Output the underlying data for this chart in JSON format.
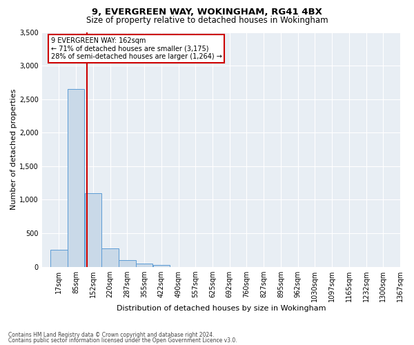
{
  "title1": "9, EVERGREEN WAY, WOKINGHAM, RG41 4BX",
  "title2": "Size of property relative to detached houses in Wokingham",
  "xlabel": "Distribution of detached houses by size in Wokingham",
  "ylabel": "Number of detached properties",
  "annotation_title": "9 EVERGREEN WAY: 162sqm",
  "annotation_line1": "← 71% of detached houses are smaller (3,175)",
  "annotation_line2": "28% of semi-detached houses are larger (1,264) →",
  "footnote1": "Contains HM Land Registry data © Crown copyright and database right 2024.",
  "footnote2": "Contains public sector information licensed under the Open Government Licence v3.0.",
  "bar_color": "#c9d9e8",
  "bar_edge_color": "#5b9bd5",
  "vline_color": "#cc0000",
  "annotation_box_color": "#cc0000",
  "plot_bg_color": "#e8eef4",
  "grid_color": "#ffffff",
  "bin_labels": [
    "17sqm",
    "85sqm",
    "152sqm",
    "220sqm",
    "287sqm",
    "355sqm",
    "422sqm",
    "490sqm",
    "557sqm",
    "625sqm",
    "692sqm",
    "760sqm",
    "827sqm",
    "895sqm",
    "962sqm",
    "1030sqm",
    "1097sqm",
    "1165sqm",
    "1232sqm",
    "1300sqm",
    "1367sqm"
  ],
  "bin_edges": [
    17,
    85,
    152,
    220,
    287,
    355,
    422,
    490,
    557,
    625,
    692,
    760,
    827,
    895,
    962,
    1030,
    1097,
    1165,
    1232,
    1300,
    1367
  ],
  "counts": [
    250,
    2650,
    1100,
    270,
    100,
    50,
    30,
    0,
    0,
    0,
    0,
    0,
    0,
    0,
    0,
    0,
    0,
    0,
    0,
    0
  ],
  "vline_x": 162,
  "ylim": [
    0,
    3500
  ],
  "yticks": [
    0,
    500,
    1000,
    1500,
    2000,
    2500,
    3000,
    3500
  ]
}
